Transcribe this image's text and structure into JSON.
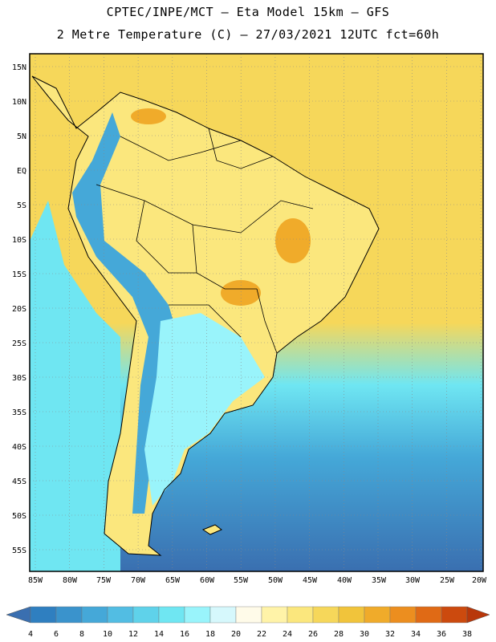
{
  "header": {
    "line1": "CPTEC/INPE/MCT —  Eta Model 15km — GFS",
    "line2": "2 Metre Temperature (C) — 27/03/2021 12UTC fct=60h"
  },
  "axes": {
    "lat_labels": [
      "15N",
      "10N",
      "5N",
      "EQ",
      "5S",
      "10S",
      "15S",
      "20S",
      "25S",
      "30S",
      "35S",
      "40S",
      "45S",
      "50S",
      "55S"
    ],
    "lon_labels": [
      "85W",
      "80W",
      "75W",
      "70W",
      "65W",
      "60W",
      "55W",
      "50W",
      "45W",
      "40W",
      "35W",
      "30W",
      "25W",
      "20W"
    ]
  },
  "colorbar": {
    "labels": [
      "4",
      "6",
      "8",
      "10",
      "12",
      "14",
      "16",
      "18",
      "20",
      "22",
      "24",
      "26",
      "28",
      "30",
      "32",
      "34",
      "36",
      "38"
    ],
    "colors": [
      "#3a6fb0",
      "#2f7fc0",
      "#3a93cc",
      "#45a8d8",
      "#52bde3",
      "#5fd2ea",
      "#6fe6f2",
      "#99f4fb",
      "#d6f8fc",
      "#fffbe9",
      "#fff3a8",
      "#fbe77d",
      "#f6d75a",
      "#f1c43b",
      "#f0ab2a",
      "#ec8e1f",
      "#e06a15",
      "#cc4a0e",
      "#b8370a"
    ]
  },
  "map": {
    "colors": {
      "ocean_cold": "#3a6fb0",
      "ocean_cool": "#45a8d8",
      "ocean_mild": "#6fe6f2",
      "ocean_warm": "#f6d75a",
      "land_warm": "#fbe77d",
      "land_hot": "#f0ab2a",
      "andes_cold": "#45a8d8",
      "patagonia": "#99f4fb",
      "coast": "#000000"
    }
  }
}
